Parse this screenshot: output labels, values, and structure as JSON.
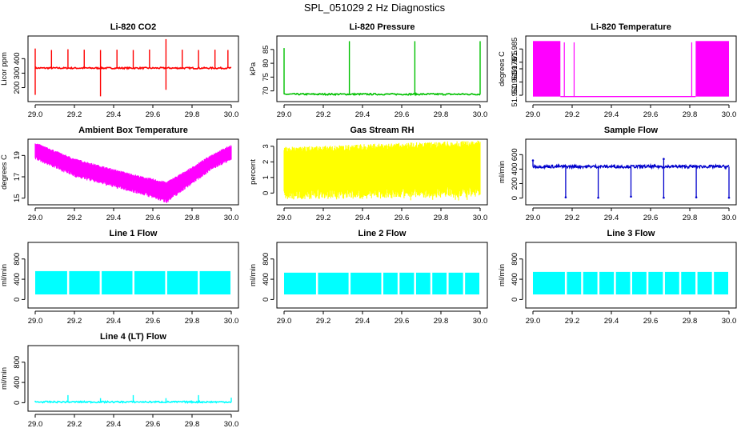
{
  "page_title": "SPL_051029  2 Hz Diagnostics",
  "chart_data": [
    {
      "id": "co2",
      "type": "line",
      "title": "Li-820 CO2",
      "xlabel": "",
      "ylabel": "Licor ppm",
      "color": "#ff0000",
      "xlim": [
        29.0,
        30.0
      ],
      "ylim": [
        120,
        540
      ],
      "xticks": [
        "29.0",
        "29.2",
        "29.4",
        "29.6",
        "29.8",
        "30.0"
      ],
      "yticks": [
        200,
        300,
        400
      ],
      "series": [
        {
          "name": "CO2",
          "baseline": 335,
          "spikes": [
            {
              "x": 29.0,
              "y": 150
            },
            {
              "x": 29.0,
              "y": 470
            },
            {
              "x": 29.083,
              "y": 460
            },
            {
              "x": 29.167,
              "y": 465
            },
            {
              "x": 29.25,
              "y": 462
            },
            {
              "x": 29.333,
              "y": 460
            },
            {
              "x": 29.333,
              "y": 140
            },
            {
              "x": 29.417,
              "y": 462
            },
            {
              "x": 29.5,
              "y": 460
            },
            {
              "x": 29.583,
              "y": 463
            },
            {
              "x": 29.667,
              "y": 535
            },
            {
              "x": 29.667,
              "y": 185
            },
            {
              "x": 29.75,
              "y": 462
            },
            {
              "x": 29.833,
              "y": 460
            },
            {
              "x": 29.917,
              "y": 462
            },
            {
              "x": 29.983,
              "y": 460
            }
          ]
        }
      ]
    },
    {
      "id": "pressure",
      "type": "line",
      "title": "Li-820 Pressure",
      "xlabel": "",
      "ylabel": "kPa",
      "color": "#00c000",
      "xlim": [
        29.0,
        30.0
      ],
      "ylim": [
        67,
        89
      ],
      "xticks": [
        "29.0",
        "29.2",
        "29.4",
        "29.6",
        "29.8",
        "30.0"
      ],
      "yticks": [
        70,
        75,
        80,
        85
      ],
      "series": [
        {
          "name": "Pressure",
          "baseline": 68.8,
          "spikes": [
            {
              "x": 29.0,
              "y": 85.5
            },
            {
              "x": 29.333,
              "y": 88
            },
            {
              "x": 29.667,
              "y": 88
            },
            {
              "x": 30.0,
              "y": 88
            }
          ]
        }
      ]
    },
    {
      "id": "temperature",
      "type": "line",
      "title": "Li-820 Temperature",
      "xlabel": "",
      "ylabel": "degrees C",
      "color": "#ff00ff",
      "xlim": [
        29.0,
        30.0
      ],
      "ylim": [
        51.947,
        51.993
      ],
      "xticks": [
        "29.0",
        "29.2",
        "29.4",
        "29.6",
        "29.8",
        "30.0"
      ],
      "yticks": [
        "51.950",
        "51.960",
        "51.970",
        "51.975",
        "51.985"
      ],
      "series": [
        {
          "name": "Temperature",
          "low": 51.949,
          "high": 51.991,
          "dense_ranges": [
            [
              29.0,
              29.14
            ],
            [
              29.83,
              30.0
            ]
          ],
          "spikes": [
            {
              "x": 29.16,
              "y": 51.99
            },
            {
              "x": 29.21,
              "y": 51.99
            },
            {
              "x": 29.81,
              "y": 51.99
            }
          ]
        }
      ]
    },
    {
      "id": "ambient",
      "type": "line",
      "title": "Ambient Box Temperature",
      "xlabel": "",
      "ylabel": "degrees C",
      "color": "#ff00ff",
      "xlim": [
        29.0,
        30.0
      ],
      "ylim": [
        14.6,
        20.3
      ],
      "xticks": [
        "29.0",
        "29.2",
        "29.4",
        "29.6",
        "29.8",
        "30.0"
      ],
      "yticks": [
        15,
        17,
        19
      ],
      "series": [
        {
          "name": "Ambient",
          "upper": [
            [
              29.0,
              20.1
            ],
            [
              29.2,
              18.6
            ],
            [
              29.4,
              17.6
            ],
            [
              29.55,
              16.9
            ],
            [
              29.67,
              16.4
            ],
            [
              29.8,
              17.8
            ],
            [
              29.9,
              19.0
            ],
            [
              30.0,
              19.9
            ]
          ],
          "lower": [
            [
              29.0,
              18.9
            ],
            [
              29.2,
              17.3
            ],
            [
              29.4,
              16.3
            ],
            [
              29.55,
              15.6
            ],
            [
              29.67,
              14.9
            ],
            [
              29.8,
              16.6
            ],
            [
              29.9,
              17.9
            ],
            [
              30.0,
              18.8
            ]
          ]
        }
      ]
    },
    {
      "id": "rh",
      "type": "line",
      "title": "Gas Stream RH",
      "xlabel": "",
      "ylabel": "percent",
      "color": "#ffff00",
      "xlim": [
        29.0,
        30.0
      ],
      "ylim": [
        -0.6,
        3.3
      ],
      "xticks": [
        "29.0",
        "29.2",
        "29.4",
        "29.6",
        "29.8",
        "30.0"
      ],
      "yticks": [
        0,
        1,
        2,
        3
      ],
      "series": [
        {
          "name": "RH",
          "upper": [
            [
              29.0,
              2.7
            ],
            [
              30.0,
              3.1
            ]
          ],
          "lower": [
            [
              29.0,
              0.2
            ],
            [
              30.0,
              0.4
            ]
          ],
          "min_spike": -0.5
        }
      ]
    },
    {
      "id": "sample",
      "type": "line",
      "title": "Sample Flow",
      "xlabel": "",
      "ylabel": "ml/min",
      "color": "#0000cc",
      "xlim": [
        29.0,
        30.0
      ],
      "ylim": [
        -60,
        780
      ],
      "xticks": [
        "29.0",
        "29.2",
        "29.4",
        "29.6",
        "29.8",
        "30.0"
      ],
      "yticks": [
        0,
        200,
        400,
        600
      ],
      "series": [
        {
          "name": "Sample",
          "baseline": 435,
          "band": 20,
          "spikes": [
            {
              "x": 29.0,
              "y": 520
            },
            {
              "x": 29.167,
              "y": 10
            },
            {
              "x": 29.333,
              "y": 5
            },
            {
              "x": 29.5,
              "y": 20
            },
            {
              "x": 29.667,
              "y": 5
            },
            {
              "x": 29.667,
              "y": 540
            },
            {
              "x": 29.833,
              "y": 10
            },
            {
              "x": 30.0,
              "y": 5
            }
          ]
        }
      ]
    },
    {
      "id": "line1",
      "type": "line",
      "title": "Line 1 Flow",
      "xlabel": "",
      "ylabel": "ml/min",
      "color": "#00ffff",
      "xlim": [
        29.0,
        30.0
      ],
      "ylim": [
        -120,
        1080
      ],
      "xticks": [
        "29.0",
        "29.2",
        "29.4",
        "29.6",
        "29.8",
        "30.0"
      ],
      "yticks": [
        0,
        400,
        800
      ],
      "series": [
        {
          "name": "Line 1",
          "high": 560,
          "low": 100,
          "gaps": [
            29.167,
            29.333,
            29.5,
            29.667,
            29.833
          ]
        }
      ]
    },
    {
      "id": "line2",
      "type": "line",
      "title": "Line 2 Flow",
      "xlabel": "",
      "ylabel": "ml/min",
      "color": "#00ffff",
      "xlim": [
        29.0,
        30.0
      ],
      "ylim": [
        -120,
        1080
      ],
      "xticks": [
        "29.0",
        "29.2",
        "29.4",
        "29.6",
        "29.8",
        "30.0"
      ],
      "yticks": [
        0,
        400,
        800
      ],
      "series": [
        {
          "name": "Line 2",
          "high": 530,
          "low": 100,
          "gaps": [
            29.167,
            29.333,
            29.5,
            29.583,
            29.667,
            29.75,
            29.833,
            29.917
          ]
        }
      ]
    },
    {
      "id": "line3",
      "type": "line",
      "title": "Line 3 Flow",
      "xlabel": "",
      "ylabel": "ml/min",
      "color": "#00ffff",
      "xlim": [
        29.0,
        30.0
      ],
      "ylim": [
        -120,
        1080
      ],
      "xticks": [
        "29.0",
        "29.2",
        "29.4",
        "29.6",
        "29.8",
        "30.0"
      ],
      "yticks": [
        0,
        400,
        800
      ],
      "series": [
        {
          "name": "Line 3",
          "high": 545,
          "low": 100,
          "gaps": [
            29.167,
            29.25,
            29.333,
            29.417,
            29.5,
            29.583,
            29.667,
            29.75,
            29.833,
            29.917
          ]
        }
      ]
    },
    {
      "id": "line4",
      "type": "line",
      "title": "Line 4 (LT) Flow",
      "xlabel": "",
      "ylabel": "ml/min",
      "color": "#00ffff",
      "xlim": [
        29.0,
        30.0
      ],
      "ylim": [
        -120,
        1080
      ],
      "xticks": [
        "29.0",
        "29.2",
        "29.4",
        "29.6",
        "29.8",
        "30.0"
      ],
      "yticks": [
        0,
        400,
        800
      ],
      "series": [
        {
          "name": "Line 4",
          "baseline": 15,
          "spikes": [
            {
              "x": 29.0,
              "y": 40
            },
            {
              "x": 29.167,
              "y": 150
            },
            {
              "x": 29.333,
              "y": 90
            },
            {
              "x": 29.5,
              "y": 150
            },
            {
              "x": 29.667,
              "y": 90
            },
            {
              "x": 29.833,
              "y": 150
            },
            {
              "x": 30.0,
              "y": 100
            }
          ]
        }
      ]
    }
  ]
}
